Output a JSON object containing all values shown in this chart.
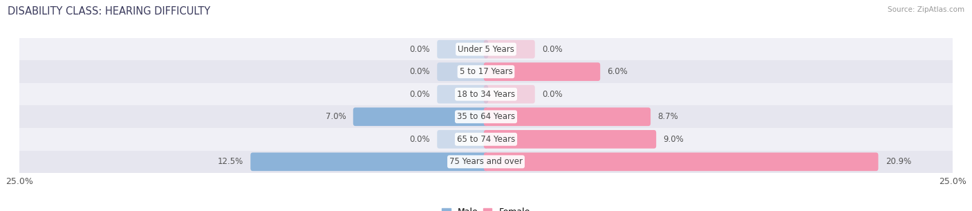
{
  "title": "DISABILITY CLASS: HEARING DIFFICULTY",
  "source": "Source: ZipAtlas.com",
  "categories": [
    "Under 5 Years",
    "5 to 17 Years",
    "18 to 34 Years",
    "35 to 64 Years",
    "65 to 74 Years",
    "75 Years and over"
  ],
  "male_values": [
    0.0,
    0.0,
    0.0,
    7.0,
    0.0,
    12.5
  ],
  "female_values": [
    0.0,
    6.0,
    0.0,
    8.7,
    9.0,
    20.9
  ],
  "male_color": "#8cb3d9",
  "female_color": "#f497b2",
  "axis_max": 25.0,
  "stub_val": 2.5,
  "title_fontsize": 10.5,
  "label_fontsize": 8.5,
  "tick_fontsize": 9,
  "legend_fontsize": 9,
  "bg_color": "#ffffff",
  "row_colors": [
    "#f0f0f6",
    "#e6e6ef"
  ],
  "source_color": "#999999",
  "text_color": "#555555",
  "center_label_color": "#444444"
}
